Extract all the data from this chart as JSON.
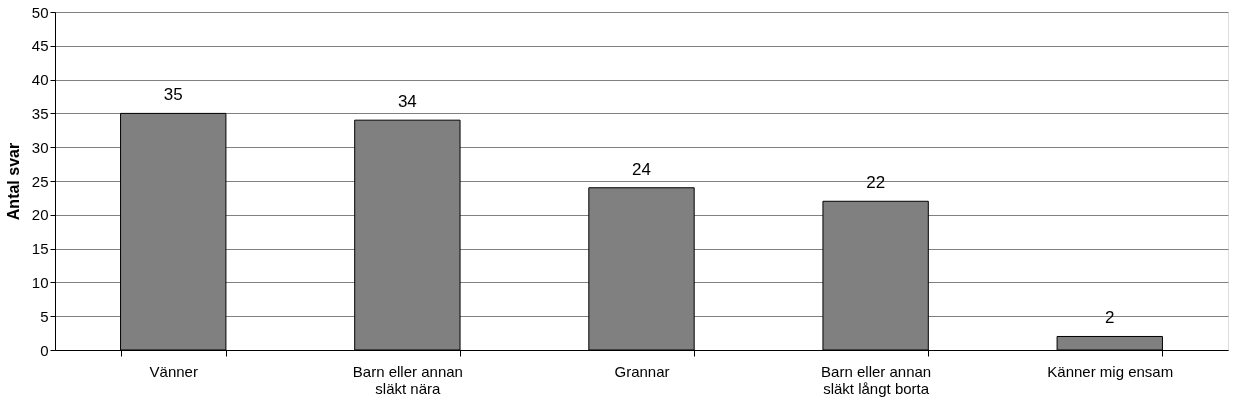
{
  "chart_data": {
    "type": "bar",
    "ylabel": "Antal svar",
    "categories": [
      "Vänner",
      "Barn eller annan släkt nära",
      "Grannar",
      "Barn eller annan släkt långt borta",
      "Känner mig ensam"
    ],
    "values": [
      35,
      34,
      24,
      22,
      2
    ],
    "color": "#808080",
    "ylim": [
      0,
      50
    ],
    "yticks": [
      0,
      5,
      10,
      15,
      20,
      25,
      30,
      35,
      40,
      45,
      50
    ],
    "grid": "y",
    "data_labels": true
  }
}
